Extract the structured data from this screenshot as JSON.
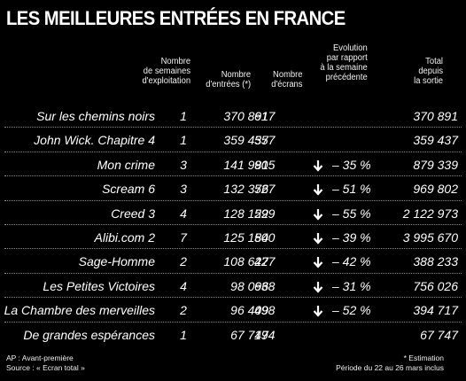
{
  "title": "LES MEILLEURES ENTRÉES EN FRANCE",
  "headers": {
    "weeks": [
      "Nombre",
      "de semaines",
      "d'exploitation"
    ],
    "entries": [
      "Nombre",
      "d'entrées (*)"
    ],
    "screens": [
      "Nombre",
      "d'écrans"
    ],
    "evolution": [
      "Evolution",
      "par rapport",
      "à la semaine",
      "précédente"
    ],
    "total": [
      "Total",
      "depuis",
      "la sortie"
    ]
  },
  "rows": [
    {
      "title": "Sur les chemins noirs",
      "weeks": "1",
      "entries": "370 891",
      "screens": "617",
      "arrow": false,
      "evolution": "",
      "total": "370 891"
    },
    {
      "title": "John Wick. Chapitre 4",
      "weeks": "1",
      "entries": "359 437",
      "screens": "557",
      "arrow": false,
      "evolution": "",
      "total": "359 437"
    },
    {
      "title": "Mon crime",
      "weeks": "3",
      "entries": "141 981",
      "screens": "905",
      "arrow": true,
      "evolution": "– 35 %",
      "total": "879 339"
    },
    {
      "title": "Scream 6",
      "weeks": "3",
      "entries": "132 376",
      "screens": "527",
      "arrow": true,
      "evolution": "– 51 %",
      "total": "969 802"
    },
    {
      "title": "Creed 3",
      "weeks": "4",
      "entries": "128 122",
      "screens": "599",
      "arrow": true,
      "evolution": "– 55 %",
      "total": "2 122 973"
    },
    {
      "title": "Alibi.com 2",
      "weeks": "7",
      "entries": "125 184",
      "screens": "500",
      "arrow": true,
      "evolution": "– 39 %",
      "total": "3 995 670"
    },
    {
      "title": "Sage-Homme",
      "weeks": "2",
      "entries": "108 627",
      "screens": "427",
      "arrow": true,
      "evolution": "– 42 %",
      "total": "388 233"
    },
    {
      "title": "Les Petites Victoires",
      "weeks": "4",
      "entries": "98 096",
      "screens": "638",
      "arrow": true,
      "evolution": "– 31 %",
      "total": "756 026"
    },
    {
      "title": "La Chambre des merveilles",
      "weeks": "2",
      "entries": "96 409",
      "screens": "498",
      "arrow": true,
      "evolution": "– 52 %",
      "total": "394 717"
    },
    {
      "title": "De grandes espérances",
      "weeks": "1",
      "entries": "67 747",
      "screens": "194",
      "arrow": false,
      "evolution": "",
      "total": "67 747"
    }
  ],
  "footer": {
    "note_ap": "AP : Avant-première",
    "source": "Source : « Ecran total »",
    "estimation": "* Estimation",
    "period": "Période du 22 au 26 mars inclus"
  },
  "icon": "arrow-down-icon",
  "colors": {
    "background": "#000000",
    "text": "#ffffff"
  }
}
